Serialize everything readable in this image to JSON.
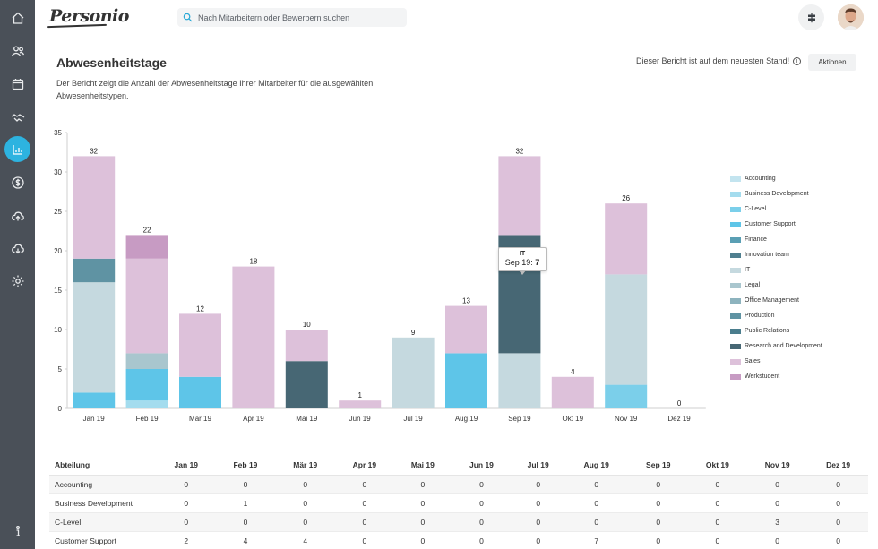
{
  "app": {
    "logo_text": "Personio"
  },
  "search": {
    "placeholder": "Nach Mitarbeitern oder Bewerbern suchen"
  },
  "sidebar": {
    "items": [
      {
        "name": "home-icon"
      },
      {
        "name": "people-icon"
      },
      {
        "name": "calendar-icon"
      },
      {
        "name": "handshake-icon"
      },
      {
        "name": "reports-icon",
        "active": true
      },
      {
        "name": "payroll-icon"
      },
      {
        "name": "cloud-upload-icon"
      },
      {
        "name": "cloud-download-icon"
      },
      {
        "name": "settings-icon"
      },
      {
        "name": "info-icon"
      }
    ]
  },
  "header": {
    "title": "Abwesenheitstage",
    "description": "Der Bericht zeigt die Anzahl der Abwesenheitstage Ihrer Mitarbeiter für die ausgewählten Abwesenheitstypen.",
    "status": "Dieser Bericht ist auf dem neuesten Stand!",
    "info_glyph": "i",
    "actions_label": "Aktionen"
  },
  "colors": {
    "Accounting": "#c3e4ef",
    "Business Development": "#a4dcee",
    "C-Level": "#7bcfea",
    "Customer Support": "#5ec5e8",
    "Finance": "#5a9fb4",
    "Innovation team": "#4f7f8f",
    "IT": "#c5d9df",
    "Legal": "#a9c6ce",
    "Office Management": "#8db3be",
    "Production": "#5f93a3",
    "Public Relations": "#4a7d8d",
    "Research and Development": "#476774",
    "Sales": "#ddc1da",
    "Werkstudent": "#c79bc3"
  },
  "chart_data": {
    "type": "bar",
    "stacked": true,
    "categories": [
      "Jan 19",
      "Feb 19",
      "Mär 19",
      "Apr 19",
      "Mai 19",
      "Jun 19",
      "Jul 19",
      "Aug 19",
      "Sep 19",
      "Okt 19",
      "Nov 19",
      "Dez 19"
    ],
    "series": [
      {
        "name": "Accounting",
        "values": [
          0,
          0,
          0,
          0,
          0,
          0,
          0,
          0,
          0,
          0,
          0,
          0
        ]
      },
      {
        "name": "Business Development",
        "values": [
          0,
          1,
          0,
          0,
          0,
          0,
          0,
          0,
          0,
          0,
          0,
          0
        ]
      },
      {
        "name": "C-Level",
        "values": [
          0,
          0,
          0,
          0,
          0,
          0,
          0,
          0,
          0,
          0,
          3,
          0
        ]
      },
      {
        "name": "Customer Support",
        "values": [
          2,
          4,
          4,
          0,
          0,
          0,
          0,
          7,
          0,
          0,
          0,
          0
        ]
      },
      {
        "name": "Finance",
        "values": [
          0,
          0,
          0,
          0,
          0,
          0,
          0,
          0,
          0,
          0,
          0,
          0
        ]
      },
      {
        "name": "Innovation team",
        "values": [
          0,
          0,
          0,
          0,
          0,
          0,
          0,
          0,
          0,
          0,
          0,
          0
        ]
      },
      {
        "name": "IT",
        "values": [
          14,
          0,
          0,
          0,
          0,
          0,
          9,
          0,
          7,
          0,
          14,
          0
        ]
      },
      {
        "name": "Legal",
        "values": [
          0,
          2,
          0,
          0,
          0,
          0,
          0,
          0,
          0,
          0,
          0,
          0
        ]
      },
      {
        "name": "Office Management",
        "values": [
          0,
          0,
          0,
          0,
          0,
          0,
          0,
          0,
          0,
          0,
          0,
          0
        ]
      },
      {
        "name": "Production",
        "values": [
          3,
          0,
          0,
          0,
          0,
          0,
          0,
          0,
          0,
          0,
          0,
          0
        ]
      },
      {
        "name": "Public Relations",
        "values": [
          0,
          0,
          0,
          0,
          0,
          0,
          0,
          0,
          0,
          0,
          0,
          0
        ]
      },
      {
        "name": "Research and Development",
        "values": [
          0,
          0,
          0,
          0,
          6,
          0,
          0,
          0,
          15,
          0,
          0,
          0
        ]
      },
      {
        "name": "Sales",
        "values": [
          13,
          12,
          8,
          18,
          4,
          1,
          0,
          6,
          10,
          4,
          9,
          0
        ]
      },
      {
        "name": "Werkstudent",
        "values": [
          0,
          3,
          0,
          0,
          0,
          0,
          0,
          0,
          0,
          0,
          0,
          0
        ]
      }
    ],
    "totals": [
      32,
      22,
      12,
      18,
      10,
      1,
      9,
      13,
      32,
      4,
      26,
      0
    ],
    "ylim": [
      0,
      35
    ],
    "yticks": [
      0,
      5,
      10,
      15,
      20,
      25,
      30,
      35
    ],
    "legend_position": "right",
    "tooltip": {
      "title": "IT",
      "label": "Sep 19:",
      "value": "7"
    }
  },
  "table": {
    "header_first": "Abteilung",
    "months": [
      "Jan 19",
      "Feb 19",
      "Mär 19",
      "Apr 19",
      "Mai 19",
      "Jun 19",
      "Jul 19",
      "Aug 19",
      "Sep 19",
      "Okt 19",
      "Nov 19",
      "Dez 19"
    ],
    "rows": [
      {
        "label": "Accounting",
        "values": [
          "0",
          "0",
          "0",
          "0",
          "0",
          "0",
          "0",
          "0",
          "0",
          "0",
          "0",
          "0"
        ]
      },
      {
        "label": "Business Development",
        "values": [
          "0",
          "1",
          "0",
          "0",
          "0",
          "0",
          "0",
          "0",
          "0",
          "0",
          "0",
          "0"
        ]
      },
      {
        "label": "C-Level",
        "values": [
          "0",
          "0",
          "0",
          "0",
          "0",
          "0",
          "0",
          "0",
          "0",
          "0",
          "3",
          "0"
        ]
      },
      {
        "label": "Customer Support",
        "values": [
          "2",
          "4",
          "4",
          "0",
          "0",
          "0",
          "0",
          "7",
          "0",
          "0",
          "0",
          "0"
        ]
      }
    ]
  }
}
